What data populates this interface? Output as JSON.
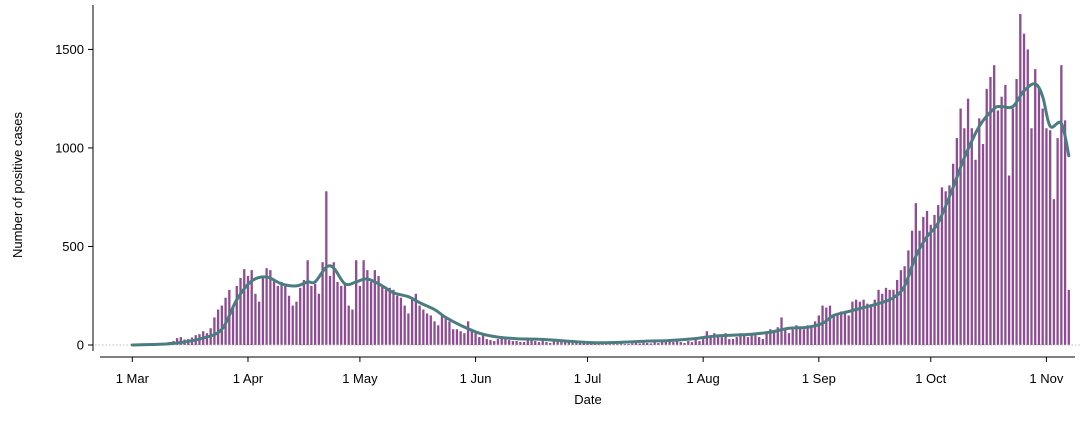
{
  "chart_data": {
    "type": "bar",
    "xlabel": "Date",
    "ylabel": "Number of positive cases",
    "ylim": [
      0,
      1700
    ],
    "y_ticks": [
      0,
      500,
      1000,
      1500
    ],
    "x_ticks": [
      {
        "label": "1 Mar",
        "date": "2020-03-01"
      },
      {
        "label": "1 Apr",
        "date": "2020-04-01"
      },
      {
        "label": "1 May",
        "date": "2020-05-01"
      },
      {
        "label": "1 Jun",
        "date": "2020-06-01"
      },
      {
        "label": "1 Jul",
        "date": "2020-07-01"
      },
      {
        "label": "1 Aug",
        "date": "2020-08-01"
      },
      {
        "label": "1 Sep",
        "date": "2020-09-01"
      },
      {
        "label": "1 Oct",
        "date": "2020-10-01"
      },
      {
        "label": "1 Nov",
        "date": "2020-11-01"
      }
    ],
    "x_range": [
      "2020-02-20",
      "2020-11-10"
    ],
    "grid": false,
    "bar_color": "#8e4c94",
    "line_color": "#4a7d80",
    "series": [
      {
        "type": "bar",
        "start_date": "2020-03-01",
        "values": [
          0,
          0,
          0,
          1,
          2,
          3,
          4,
          3,
          6,
          8,
          15,
          20,
          35,
          40,
          28,
          30,
          38,
          50,
          55,
          70,
          60,
          85,
          140,
          180,
          200,
          240,
          280,
          200,
          300,
          340,
          385,
          350,
          380,
          260,
          220,
          350,
          390,
          380,
          330,
          300,
          320,
          300,
          250,
          200,
          220,
          290,
          330,
          430,
          300,
          310,
          260,
          420,
          780,
          350,
          420,
          320,
          300,
          310,
          200,
          180,
          430,
          300,
          430,
          380,
          320,
          380,
          350,
          300,
          280,
          290,
          280,
          250,
          240,
          200,
          160,
          240,
          260,
          200,
          180,
          160,
          150,
          120,
          100,
          150,
          140,
          120,
          80,
          80,
          70,
          60,
          120,
          80,
          60,
          40,
          60,
          30,
          25,
          20,
          30,
          45,
          30,
          25,
          20,
          20,
          15,
          15,
          30,
          25,
          20,
          15,
          20,
          15,
          10,
          20,
          25,
          20,
          15,
          15,
          10,
          10,
          10,
          10,
          12,
          10,
          8,
          10,
          8,
          10,
          8,
          10,
          6,
          8,
          5,
          5,
          8,
          10,
          8,
          12,
          10,
          8,
          15,
          10,
          15,
          20,
          25,
          15,
          20,
          15,
          10,
          20,
          15,
          30,
          20,
          30,
          70,
          40,
          60,
          50,
          40,
          60,
          30,
          30,
          40,
          60,
          50,
          40,
          50,
          50,
          40,
          30,
          70,
          80,
          70,
          90,
          140,
          80,
          60,
          80,
          100,
          90,
          80,
          100,
          100,
          120,
          150,
          200,
          190,
          200,
          150,
          160,
          170,
          160,
          150,
          220,
          230,
          220,
          230,
          210,
          200,
          230,
          280,
          260,
          290,
          280,
          280,
          330,
          380,
          400,
          480,
          580,
          720,
          580,
          650,
          680,
          610,
          660,
          710,
          800,
          780,
          810,
          920,
          1050,
          1200,
          1100,
          1250,
          1100,
          940,
          1150,
          1020,
          1300,
          1360,
          1420,
          1190,
          1260,
          1320,
          860,
          1200,
          1350,
          1680,
          1580,
          1500,
          1100,
          1400,
          1300,
          1200,
          1100,
          1090,
          740,
          1050,
          1420,
          1140,
          280
        ]
      },
      {
        "type": "line",
        "points": [
          [
            "2020-03-01",
            0
          ],
          [
            "2020-03-10",
            5
          ],
          [
            "2020-03-15",
            15
          ],
          [
            "2020-03-20",
            35
          ],
          [
            "2020-03-25",
            80
          ],
          [
            "2020-03-29",
            230
          ],
          [
            "2020-04-02",
            325
          ],
          [
            "2020-04-06",
            345
          ],
          [
            "2020-04-10",
            310
          ],
          [
            "2020-04-14",
            300
          ],
          [
            "2020-04-17",
            320
          ],
          [
            "2020-04-19",
            320
          ],
          [
            "2020-04-22",
            395
          ],
          [
            "2020-04-24",
            390
          ],
          [
            "2020-04-27",
            310
          ],
          [
            "2020-04-30",
            320
          ],
          [
            "2020-05-03",
            335
          ],
          [
            "2020-05-07",
            300
          ],
          [
            "2020-05-10",
            265
          ],
          [
            "2020-05-14",
            245
          ],
          [
            "2020-05-17",
            215
          ],
          [
            "2020-05-21",
            180
          ],
          [
            "2020-05-24",
            140
          ],
          [
            "2020-05-28",
            100
          ],
          [
            "2020-06-02",
            60
          ],
          [
            "2020-06-07",
            40
          ],
          [
            "2020-06-12",
            32
          ],
          [
            "2020-06-17",
            30
          ],
          [
            "2020-06-22",
            25
          ],
          [
            "2020-06-27",
            18
          ],
          [
            "2020-07-02",
            12
          ],
          [
            "2020-07-07",
            12
          ],
          [
            "2020-07-12",
            15
          ],
          [
            "2020-07-17",
            20
          ],
          [
            "2020-07-22",
            22
          ],
          [
            "2020-07-27",
            28
          ],
          [
            "2020-07-31",
            35
          ],
          [
            "2020-08-04",
            45
          ],
          [
            "2020-08-09",
            50
          ],
          [
            "2020-08-14",
            55
          ],
          [
            "2020-08-19",
            65
          ],
          [
            "2020-08-24",
            85
          ],
          [
            "2020-08-29",
            90
          ],
          [
            "2020-09-02",
            110
          ],
          [
            "2020-09-05",
            150
          ],
          [
            "2020-09-09",
            170
          ],
          [
            "2020-09-13",
            190
          ],
          [
            "2020-09-17",
            210
          ],
          [
            "2020-09-21",
            240
          ],
          [
            "2020-09-24",
            300
          ],
          [
            "2020-09-27",
            450
          ],
          [
            "2020-09-30",
            550
          ],
          [
            "2020-10-03",
            620
          ],
          [
            "2020-10-07",
            800
          ],
          [
            "2020-10-10",
            950
          ],
          [
            "2020-10-14",
            1110
          ],
          [
            "2020-10-18",
            1200
          ],
          [
            "2020-10-20",
            1210
          ],
          [
            "2020-10-23",
            1210
          ],
          [
            "2020-10-26",
            1290
          ],
          [
            "2020-10-29",
            1325
          ],
          [
            "2020-10-31",
            1260
          ],
          [
            "2020-11-02",
            1110
          ],
          [
            "2020-11-05",
            1125
          ],
          [
            "2020-11-07",
            960
          ]
        ]
      }
    ]
  }
}
